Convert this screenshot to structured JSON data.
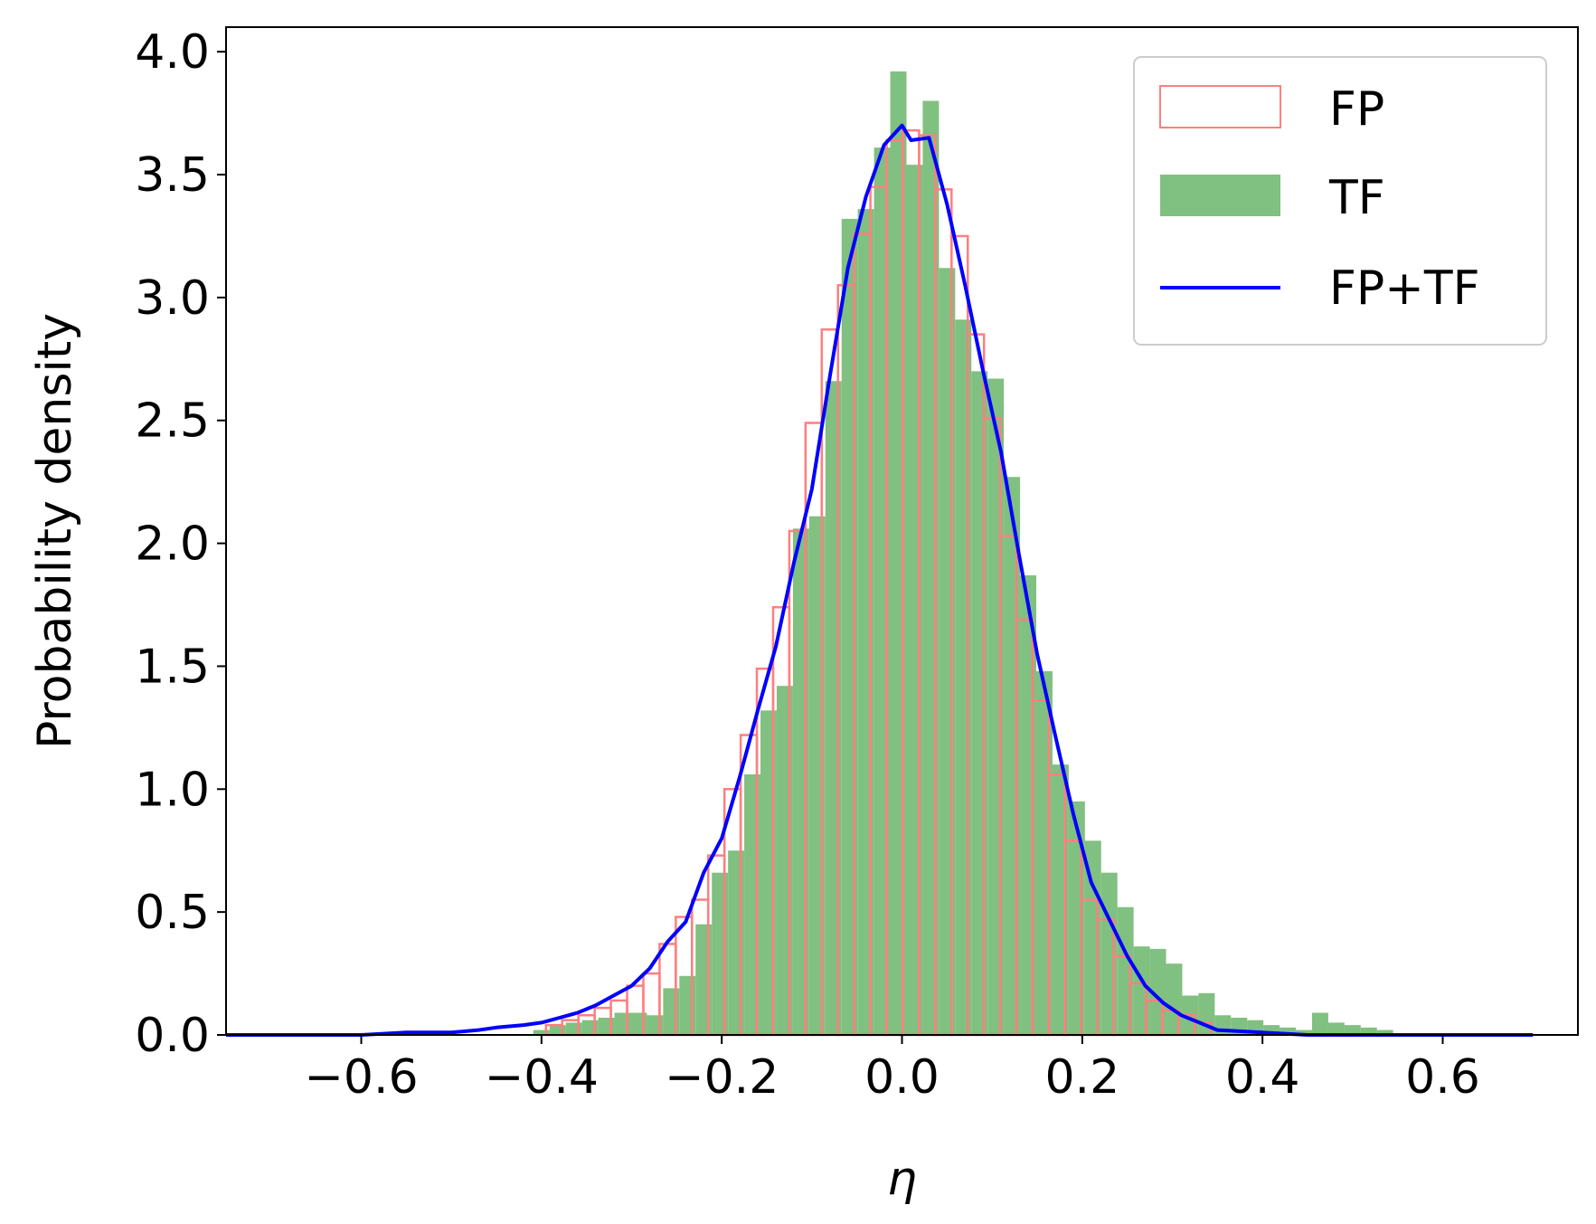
{
  "chart_data": {
    "type": "bar",
    "title": "",
    "xlabel": "η",
    "ylabel": "Probability density",
    "xlim": [
      -0.75,
      0.75
    ],
    "ylim": [
      0,
      4.1
    ],
    "xticks": [
      -0.6,
      -0.4,
      -0.2,
      0.0,
      0.2,
      0.4,
      0.6
    ],
    "xtick_labels": [
      "−0.6",
      "−0.4",
      "−0.2",
      "0.0",
      "0.2",
      "0.4",
      "0.6"
    ],
    "yticks": [
      0.0,
      0.5,
      1.0,
      1.5,
      2.0,
      2.5,
      3.0,
      3.5,
      4.0
    ],
    "ytick_labels": [
      "0.0",
      "0.5",
      "1.0",
      "1.5",
      "2.0",
      "2.5",
      "3.0",
      "3.5",
      "4.0"
    ],
    "grid": false,
    "legend_position": "top-right",
    "series": [
      {
        "name": "FP",
        "kind": "step-histogram",
        "color": "#ff7f7f",
        "bins": [
          {
            "x0": -0.395,
            "x1": -0.377,
            "y": 0.04
          },
          {
            "x0": -0.377,
            "x1": -0.359,
            "y": 0.06
          },
          {
            "x0": -0.359,
            "x1": -0.341,
            "y": 0.08
          },
          {
            "x0": -0.341,
            "x1": -0.323,
            "y": 0.11
          },
          {
            "x0": -0.323,
            "x1": -0.305,
            "y": 0.14
          },
          {
            "x0": -0.305,
            "x1": -0.287,
            "y": 0.2
          },
          {
            "x0": -0.287,
            "x1": -0.269,
            "y": 0.25
          },
          {
            "x0": -0.269,
            "x1": -0.251,
            "y": 0.37
          },
          {
            "x0": -0.251,
            "x1": -0.233,
            "y": 0.48
          },
          {
            "x0": -0.233,
            "x1": -0.215,
            "y": 0.55
          },
          {
            "x0": -0.215,
            "x1": -0.197,
            "y": 0.73
          },
          {
            "x0": -0.197,
            "x1": -0.179,
            "y": 1.0
          },
          {
            "x0": -0.179,
            "x1": -0.161,
            "y": 1.22
          },
          {
            "x0": -0.161,
            "x1": -0.143,
            "y": 1.49
          },
          {
            "x0": -0.143,
            "x1": -0.125,
            "y": 1.74
          },
          {
            "x0": -0.125,
            "x1": -0.107,
            "y": 2.05
          },
          {
            "x0": -0.107,
            "x1": -0.089,
            "y": 2.49
          },
          {
            "x0": -0.089,
            "x1": -0.071,
            "y": 2.87
          },
          {
            "x0": -0.071,
            "x1": -0.053,
            "y": 3.05
          },
          {
            "x0": -0.053,
            "x1": -0.035,
            "y": 3.26
          },
          {
            "x0": -0.035,
            "x1": -0.017,
            "y": 3.45
          },
          {
            "x0": -0.017,
            "x1": 0.001,
            "y": 3.64
          },
          {
            "x0": 0.001,
            "x1": 0.019,
            "y": 3.68
          },
          {
            "x0": 0.019,
            "x1": 0.037,
            "y": 3.66
          },
          {
            "x0": 0.037,
            "x1": 0.055,
            "y": 3.44
          },
          {
            "x0": 0.055,
            "x1": 0.073,
            "y": 3.25
          },
          {
            "x0": 0.073,
            "x1": 0.091,
            "y": 2.85
          },
          {
            "x0": 0.091,
            "x1": 0.109,
            "y": 2.51
          },
          {
            "x0": 0.109,
            "x1": 0.127,
            "y": 2.03
          },
          {
            "x0": 0.127,
            "x1": 0.145,
            "y": 1.69
          },
          {
            "x0": 0.145,
            "x1": 0.163,
            "y": 1.36
          },
          {
            "x0": 0.163,
            "x1": 0.181,
            "y": 1.06
          },
          {
            "x0": 0.181,
            "x1": 0.199,
            "y": 0.79
          },
          {
            "x0": 0.199,
            "x1": 0.217,
            "y": 0.55
          },
          {
            "x0": 0.217,
            "x1": 0.235,
            "y": 0.47
          },
          {
            "x0": 0.235,
            "x1": 0.253,
            "y": 0.32
          },
          {
            "x0": 0.253,
            "x1": 0.271,
            "y": 0.21
          },
          {
            "x0": 0.271,
            "x1": 0.289,
            "y": 0.14
          },
          {
            "x0": 0.289,
            "x1": 0.307,
            "y": 0.1
          },
          {
            "x0": 0.307,
            "x1": 0.325,
            "y": 0.08
          },
          {
            "x0": 0.325,
            "x1": 0.343,
            "y": 0.05
          }
        ]
      },
      {
        "name": "TF",
        "kind": "filled-histogram",
        "color": "#80c080",
        "bins": [
          {
            "x0": -0.409,
            "x1": -0.391,
            "y": 0.02
          },
          {
            "x0": -0.391,
            "x1": -0.373,
            "y": 0.04
          },
          {
            "x0": -0.373,
            "x1": -0.355,
            "y": 0.05
          },
          {
            "x0": -0.355,
            "x1": -0.337,
            "y": 0.06
          },
          {
            "x0": -0.337,
            "x1": -0.319,
            "y": 0.07
          },
          {
            "x0": -0.319,
            "x1": -0.301,
            "y": 0.09
          },
          {
            "x0": -0.301,
            "x1": -0.283,
            "y": 0.09
          },
          {
            "x0": -0.283,
            "x1": -0.265,
            "y": 0.08
          },
          {
            "x0": -0.265,
            "x1": -0.247,
            "y": 0.19
          },
          {
            "x0": -0.247,
            "x1": -0.229,
            "y": 0.24
          },
          {
            "x0": -0.229,
            "x1": -0.211,
            "y": 0.45
          },
          {
            "x0": -0.211,
            "x1": -0.193,
            "y": 0.66
          },
          {
            "x0": -0.193,
            "x1": -0.175,
            "y": 0.75
          },
          {
            "x0": -0.175,
            "x1": -0.157,
            "y": 1.06
          },
          {
            "x0": -0.157,
            "x1": -0.139,
            "y": 1.32
          },
          {
            "x0": -0.139,
            "x1": -0.121,
            "y": 1.42
          },
          {
            "x0": -0.121,
            "x1": -0.103,
            "y": 2.06
          },
          {
            "x0": -0.103,
            "x1": -0.085,
            "y": 2.11
          },
          {
            "x0": -0.085,
            "x1": -0.067,
            "y": 2.66
          },
          {
            "x0": -0.067,
            "x1": -0.049,
            "y": 3.32
          },
          {
            "x0": -0.049,
            "x1": -0.031,
            "y": 3.36
          },
          {
            "x0": -0.031,
            "x1": -0.013,
            "y": 3.61
          },
          {
            "x0": -0.013,
            "x1": 0.005,
            "y": 3.92
          },
          {
            "x0": 0.005,
            "x1": 0.023,
            "y": 3.54
          },
          {
            "x0": 0.023,
            "x1": 0.041,
            "y": 3.8
          },
          {
            "x0": 0.041,
            "x1": 0.059,
            "y": 3.12
          },
          {
            "x0": 0.059,
            "x1": 0.077,
            "y": 2.91
          },
          {
            "x0": 0.077,
            "x1": 0.095,
            "y": 2.7
          },
          {
            "x0": 0.095,
            "x1": 0.113,
            "y": 2.67
          },
          {
            "x0": 0.113,
            "x1": 0.131,
            "y": 2.27
          },
          {
            "x0": 0.131,
            "x1": 0.149,
            "y": 1.87
          },
          {
            "x0": 0.149,
            "x1": 0.167,
            "y": 1.48
          },
          {
            "x0": 0.167,
            "x1": 0.185,
            "y": 1.1
          },
          {
            "x0": 0.185,
            "x1": 0.203,
            "y": 0.95
          },
          {
            "x0": 0.203,
            "x1": 0.221,
            "y": 0.79
          },
          {
            "x0": 0.221,
            "x1": 0.239,
            "y": 0.66
          },
          {
            "x0": 0.239,
            "x1": 0.257,
            "y": 0.52
          },
          {
            "x0": 0.257,
            "x1": 0.275,
            "y": 0.36
          },
          {
            "x0": 0.275,
            "x1": 0.293,
            "y": 0.35
          },
          {
            "x0": 0.293,
            "x1": 0.311,
            "y": 0.29
          },
          {
            "x0": 0.311,
            "x1": 0.329,
            "y": 0.16
          },
          {
            "x0": 0.329,
            "x1": 0.347,
            "y": 0.17
          },
          {
            "x0": 0.347,
            "x1": 0.365,
            "y": 0.08
          },
          {
            "x0": 0.365,
            "x1": 0.383,
            "y": 0.07
          },
          {
            "x0": 0.383,
            "x1": 0.401,
            "y": 0.06
          },
          {
            "x0": 0.401,
            "x1": 0.419,
            "y": 0.04
          },
          {
            "x0": 0.419,
            "x1": 0.437,
            "y": 0.03
          },
          {
            "x0": 0.437,
            "x1": 0.455,
            "y": 0.02
          },
          {
            "x0": 0.455,
            "x1": 0.473,
            "y": 0.09
          },
          {
            "x0": 0.473,
            "x1": 0.491,
            "y": 0.05
          },
          {
            "x0": 0.491,
            "x1": 0.509,
            "y": 0.04
          },
          {
            "x0": 0.509,
            "x1": 0.527,
            "y": 0.03
          },
          {
            "x0": 0.527,
            "x1": 0.545,
            "y": 0.02
          }
        ]
      },
      {
        "name": "FP+TF",
        "kind": "line",
        "color": "#0000ff",
        "x": [
          -0.75,
          -0.7,
          -0.65,
          -0.6,
          -0.55,
          -0.5,
          -0.47,
          -0.45,
          -0.42,
          -0.4,
          -0.38,
          -0.36,
          -0.34,
          -0.32,
          -0.3,
          -0.28,
          -0.26,
          -0.24,
          -0.22,
          -0.2,
          -0.18,
          -0.16,
          -0.14,
          -0.12,
          -0.1,
          -0.08,
          -0.06,
          -0.04,
          -0.02,
          0.0,
          0.01,
          0.03,
          0.05,
          0.07,
          0.09,
          0.11,
          0.13,
          0.15,
          0.17,
          0.19,
          0.21,
          0.23,
          0.25,
          0.27,
          0.29,
          0.31,
          0.33,
          0.35,
          0.4,
          0.45,
          0.5,
          0.55,
          0.6,
          0.65,
          0.7
        ],
        "y": [
          0.0,
          0.0,
          0.0,
          0.0,
          0.01,
          0.01,
          0.02,
          0.03,
          0.04,
          0.05,
          0.07,
          0.09,
          0.12,
          0.16,
          0.2,
          0.27,
          0.38,
          0.46,
          0.66,
          0.8,
          1.05,
          1.32,
          1.58,
          1.92,
          2.22,
          2.68,
          3.12,
          3.41,
          3.62,
          3.7,
          3.64,
          3.65,
          3.38,
          3.05,
          2.7,
          2.37,
          1.95,
          1.55,
          1.22,
          0.9,
          0.62,
          0.47,
          0.32,
          0.2,
          0.13,
          0.08,
          0.05,
          0.02,
          0.01,
          0.0,
          0.0,
          0.0,
          0.0,
          0.0,
          0.0
        ]
      }
    ]
  }
}
